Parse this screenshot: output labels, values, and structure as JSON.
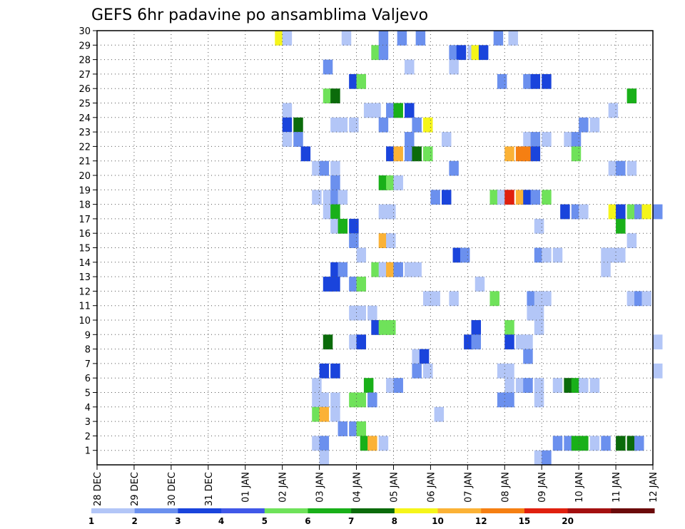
{
  "chart_data": {
    "type": "heatmap",
    "title": "GEFS 6hr padavine po ansamblima Valjevo",
    "x_tick_labels": [
      "28 DEC",
      "29 DEC",
      "30 DEC",
      "31 DEC",
      "01 JAN",
      "02 JAN",
      "03 JAN",
      "04 JAN",
      "05 JAN",
      "06 JAN",
      "07 JAN",
      "08 JAN",
      "09 JAN",
      "10 JAN",
      "11 JAN",
      "12 JAN"
    ],
    "y_tick_labels": [
      "1",
      "2",
      "3",
      "4",
      "5",
      "6",
      "7",
      "8",
      "9",
      "10",
      "11",
      "12",
      "13",
      "14",
      "15",
      "16",
      "17",
      "18",
      "19",
      "20",
      "21",
      "22",
      "23",
      "24",
      "25",
      "26",
      "27",
      "28",
      "29",
      "30"
    ],
    "ylim": [
      0,
      30
    ],
    "legend_placement": "bottom",
    "color_levels": [
      "1",
      "2",
      "3",
      "4",
      "5",
      "6",
      "7",
      "8",
      "10",
      "12",
      "15",
      "20"
    ],
    "color_bins": [
      "#b3c6f7",
      "#6b90ee",
      "#1a44dc",
      "#4058e8",
      "#6fe25a",
      "#19b019",
      "#0b6b0b",
      "#f5f51a",
      "#fbb236",
      "#f57f12",
      "#e0200e",
      "#a41010",
      "#6b0a0a"
    ],
    "cells": [
      {
        "day": 4.8,
        "member": 30,
        "v": 8
      },
      {
        "day": 5.0,
        "member": 30,
        "v": 1
      },
      {
        "day": 6.6,
        "member": 30,
        "v": 1
      },
      {
        "day": 7.6,
        "member": 30,
        "v": 2
      },
      {
        "day": 8.1,
        "member": 30,
        "v": 2
      },
      {
        "day": 8.6,
        "member": 30,
        "v": 2
      },
      {
        "day": 10.7,
        "member": 30,
        "v": 2
      },
      {
        "day": 11.1,
        "member": 30,
        "v": 1
      },
      {
        "day": 7.4,
        "member": 29,
        "v": 5
      },
      {
        "day": 7.6,
        "member": 29,
        "v": 2
      },
      {
        "day": 9.5,
        "member": 29,
        "v": 2
      },
      {
        "day": 9.7,
        "member": 29,
        "v": 3
      },
      {
        "day": 10.0,
        "member": 29,
        "v": 1
      },
      {
        "day": 10.1,
        "member": 29,
        "v": 8
      },
      {
        "day": 10.3,
        "member": 29,
        "v": 3
      },
      {
        "day": 6.1,
        "member": 28,
        "v": 2
      },
      {
        "day": 8.3,
        "member": 28,
        "v": 1
      },
      {
        "day": 9.5,
        "member": 28,
        "v": 1
      },
      {
        "day": 6.8,
        "member": 27,
        "v": 3
      },
      {
        "day": 7.0,
        "member": 27,
        "v": 5
      },
      {
        "day": 10.8,
        "member": 27,
        "v": 2
      },
      {
        "day": 11.5,
        "member": 27,
        "v": 2
      },
      {
        "day": 11.7,
        "member": 27,
        "v": 3
      },
      {
        "day": 12.0,
        "member": 27,
        "v": 3
      },
      {
        "day": 6.1,
        "member": 26,
        "v": 5
      },
      {
        "day": 6.3,
        "member": 26,
        "v": 7
      },
      {
        "day": 14.3,
        "member": 26,
        "v": 6
      },
      {
        "day": 5.0,
        "member": 25,
        "v": 1
      },
      {
        "day": 7.2,
        "member": 25,
        "v": 1
      },
      {
        "day": 7.4,
        "member": 25,
        "v": 1
      },
      {
        "day": 7.8,
        "member": 25,
        "v": 2
      },
      {
        "day": 8.0,
        "member": 25,
        "v": 6
      },
      {
        "day": 8.3,
        "member": 25,
        "v": 3
      },
      {
        "day": 13.8,
        "member": 25,
        "v": 1
      },
      {
        "day": 5.0,
        "member": 24,
        "v": 3
      },
      {
        "day": 5.3,
        "member": 24,
        "v": 7
      },
      {
        "day": 6.3,
        "member": 24,
        "v": 1
      },
      {
        "day": 6.5,
        "member": 24,
        "v": 1
      },
      {
        "day": 6.8,
        "member": 24,
        "v": 1
      },
      {
        "day": 7.6,
        "member": 24,
        "v": 2
      },
      {
        "day": 8.5,
        "member": 24,
        "v": 2
      },
      {
        "day": 8.8,
        "member": 24,
        "v": 8
      },
      {
        "day": 13.0,
        "member": 24,
        "v": 2
      },
      {
        "day": 13.3,
        "member": 24,
        "v": 1
      },
      {
        "day": 5.0,
        "member": 23,
        "v": 1
      },
      {
        "day": 5.3,
        "member": 23,
        "v": 2
      },
      {
        "day": 8.3,
        "member": 23,
        "v": 2
      },
      {
        "day": 9.3,
        "member": 23,
        "v": 1
      },
      {
        "day": 11.5,
        "member": 23,
        "v": 1
      },
      {
        "day": 11.7,
        "member": 23,
        "v": 2
      },
      {
        "day": 12.0,
        "member": 23,
        "v": 1
      },
      {
        "day": 12.6,
        "member": 23,
        "v": 1
      },
      {
        "day": 12.8,
        "member": 23,
        "v": 2
      },
      {
        "day": 5.5,
        "member": 22,
        "v": 3
      },
      {
        "day": 7.8,
        "member": 22,
        "v": 3
      },
      {
        "day": 8.0,
        "member": 22,
        "v": 10
      },
      {
        "day": 8.3,
        "member": 22,
        "v": 2
      },
      {
        "day": 8.5,
        "member": 22,
        "v": 7
      },
      {
        "day": 8.8,
        "member": 22,
        "v": 5
      },
      {
        "day": 11.0,
        "member": 22,
        "v": 10
      },
      {
        "day": 11.3,
        "member": 22,
        "v": 12
      },
      {
        "day": 11.5,
        "member": 22,
        "v": 12
      },
      {
        "day": 11.7,
        "member": 22,
        "v": 3
      },
      {
        "day": 12.8,
        "member": 22,
        "v": 5
      },
      {
        "day": 5.8,
        "member": 21,
        "v": 1
      },
      {
        "day": 6.0,
        "member": 21,
        "v": 2
      },
      {
        "day": 6.3,
        "member": 21,
        "v": 1
      },
      {
        "day": 9.5,
        "member": 21,
        "v": 2
      },
      {
        "day": 13.8,
        "member": 21,
        "v": 1
      },
      {
        "day": 14.0,
        "member": 21,
        "v": 2
      },
      {
        "day": 14.3,
        "member": 21,
        "v": 1
      },
      {
        "day": 6.3,
        "member": 20,
        "v": 2
      },
      {
        "day": 7.6,
        "member": 20,
        "v": 6
      },
      {
        "day": 7.8,
        "member": 20,
        "v": 5
      },
      {
        "day": 8.0,
        "member": 20,
        "v": 1
      },
      {
        "day": 5.8,
        "member": 19,
        "v": 1
      },
      {
        "day": 6.1,
        "member": 19,
        "v": 1
      },
      {
        "day": 6.3,
        "member": 19,
        "v": 2
      },
      {
        "day": 6.5,
        "member": 19,
        "v": 1
      },
      {
        "day": 9.0,
        "member": 19,
        "v": 2
      },
      {
        "day": 9.3,
        "member": 19,
        "v": 3
      },
      {
        "day": 10.6,
        "member": 19,
        "v": 5
      },
      {
        "day": 10.8,
        "member": 19,
        "v": 1
      },
      {
        "day": 11.0,
        "member": 19,
        "v": 15
      },
      {
        "day": 11.3,
        "member": 19,
        "v": 10
      },
      {
        "day": 11.5,
        "member": 19,
        "v": 3
      },
      {
        "day": 11.7,
        "member": 19,
        "v": 2
      },
      {
        "day": 12.0,
        "member": 19,
        "v": 5
      },
      {
        "day": 6.1,
        "member": 18,
        "v": 1
      },
      {
        "day": 6.3,
        "member": 18,
        "v": 6
      },
      {
        "day": 7.6,
        "member": 18,
        "v": 1
      },
      {
        "day": 7.8,
        "member": 18,
        "v": 1
      },
      {
        "day": 12.5,
        "member": 18,
        "v": 3
      },
      {
        "day": 12.8,
        "member": 18,
        "v": 2
      },
      {
        "day": 13.0,
        "member": 18,
        "v": 1
      },
      {
        "day": 13.8,
        "member": 18,
        "v": 8
      },
      {
        "day": 14.0,
        "member": 18,
        "v": 3
      },
      {
        "day": 14.3,
        "member": 18,
        "v": 5
      },
      {
        "day": 14.5,
        "member": 18,
        "v": 2
      },
      {
        "day": 14.7,
        "member": 18,
        "v": 8
      },
      {
        "day": 15.0,
        "member": 18,
        "v": 2
      },
      {
        "day": 6.3,
        "member": 17,
        "v": 1
      },
      {
        "day": 6.5,
        "member": 17,
        "v": 6
      },
      {
        "day": 6.8,
        "member": 17,
        "v": 3
      },
      {
        "day": 11.8,
        "member": 17,
        "v": 1
      },
      {
        "day": 14.0,
        "member": 17,
        "v": 6
      },
      {
        "day": 6.8,
        "member": 16,
        "v": 2
      },
      {
        "day": 7.6,
        "member": 16,
        "v": 10
      },
      {
        "day": 7.8,
        "member": 16,
        "v": 1
      },
      {
        "day": 14.3,
        "member": 16,
        "v": 1
      },
      {
        "day": 7.0,
        "member": 15,
        "v": 1
      },
      {
        "day": 9.6,
        "member": 15,
        "v": 3
      },
      {
        "day": 9.8,
        "member": 15,
        "v": 2
      },
      {
        "day": 11.8,
        "member": 15,
        "v": 2
      },
      {
        "day": 12.0,
        "member": 15,
        "v": 1
      },
      {
        "day": 12.3,
        "member": 15,
        "v": 1
      },
      {
        "day": 13.6,
        "member": 15,
        "v": 1
      },
      {
        "day": 13.8,
        "member": 15,
        "v": 1
      },
      {
        "day": 14.0,
        "member": 15,
        "v": 1
      },
      {
        "day": 6.3,
        "member": 14,
        "v": 3
      },
      {
        "day": 6.5,
        "member": 14,
        "v": 2
      },
      {
        "day": 7.4,
        "member": 14,
        "v": 5
      },
      {
        "day": 7.6,
        "member": 14,
        "v": 1
      },
      {
        "day": 7.8,
        "member": 14,
        "v": 10
      },
      {
        "day": 8.0,
        "member": 14,
        "v": 2
      },
      {
        "day": 8.3,
        "member": 14,
        "v": 1
      },
      {
        "day": 8.5,
        "member": 14,
        "v": 1
      },
      {
        "day": 13.6,
        "member": 14,
        "v": 1
      },
      {
        "day": 6.1,
        "member": 13,
        "v": 3
      },
      {
        "day": 6.3,
        "member": 13,
        "v": 3
      },
      {
        "day": 6.8,
        "member": 13,
        "v": 2
      },
      {
        "day": 7.0,
        "member": 13,
        "v": 5
      },
      {
        "day": 10.2,
        "member": 13,
        "v": 1
      },
      {
        "day": 8.8,
        "member": 12,
        "v": 1
      },
      {
        "day": 9.0,
        "member": 12,
        "v": 1
      },
      {
        "day": 9.5,
        "member": 12,
        "v": 1
      },
      {
        "day": 10.6,
        "member": 12,
        "v": 5
      },
      {
        "day": 11.6,
        "member": 12,
        "v": 2
      },
      {
        "day": 11.8,
        "member": 12,
        "v": 1
      },
      {
        "day": 12.0,
        "member": 12,
        "v": 1
      },
      {
        "day": 14.3,
        "member": 12,
        "v": 1
      },
      {
        "day": 14.5,
        "member": 12,
        "v": 2
      },
      {
        "day": 14.7,
        "member": 12,
        "v": 1
      },
      {
        "day": 6.8,
        "member": 11,
        "v": 1
      },
      {
        "day": 7.0,
        "member": 11,
        "v": 1
      },
      {
        "day": 7.3,
        "member": 11,
        "v": 1
      },
      {
        "day": 11.6,
        "member": 11,
        "v": 1
      },
      {
        "day": 11.8,
        "member": 11,
        "v": 1
      },
      {
        "day": 7.4,
        "member": 10,
        "v": 3
      },
      {
        "day": 7.6,
        "member": 10,
        "v": 5
      },
      {
        "day": 7.8,
        "member": 10,
        "v": 5
      },
      {
        "day": 10.1,
        "member": 10,
        "v": 3
      },
      {
        "day": 11.0,
        "member": 10,
        "v": 5
      },
      {
        "day": 11.8,
        "member": 10,
        "v": 1
      },
      {
        "day": 6.1,
        "member": 9,
        "v": 7
      },
      {
        "day": 6.8,
        "member": 9,
        "v": 1
      },
      {
        "day": 7.0,
        "member": 9,
        "v": 3
      },
      {
        "day": 9.9,
        "member": 9,
        "v": 3
      },
      {
        "day": 10.1,
        "member": 9,
        "v": 2
      },
      {
        "day": 11.0,
        "member": 9,
        "v": 3
      },
      {
        "day": 11.3,
        "member": 9,
        "v": 1
      },
      {
        "day": 11.5,
        "member": 9,
        "v": 1
      },
      {
        "day": 15.0,
        "member": 9,
        "v": 1
      },
      {
        "day": 8.5,
        "member": 8,
        "v": 1
      },
      {
        "day": 8.7,
        "member": 8,
        "v": 3
      },
      {
        "day": 11.5,
        "member": 8,
        "v": 2
      },
      {
        "day": 6.0,
        "member": 7,
        "v": 3
      },
      {
        "day": 6.3,
        "member": 7,
        "v": 3
      },
      {
        "day": 8.5,
        "member": 7,
        "v": 2
      },
      {
        "day": 8.8,
        "member": 7,
        "v": 1
      },
      {
        "day": 10.8,
        "member": 7,
        "v": 1
      },
      {
        "day": 11.0,
        "member": 7,
        "v": 1
      },
      {
        "day": 15.0,
        "member": 7,
        "v": 1
      },
      {
        "day": 5.8,
        "member": 6,
        "v": 1
      },
      {
        "day": 7.2,
        "member": 6,
        "v": 6
      },
      {
        "day": 7.8,
        "member": 6,
        "v": 1
      },
      {
        "day": 8.0,
        "member": 6,
        "v": 2
      },
      {
        "day": 11.0,
        "member": 6,
        "v": 1
      },
      {
        "day": 11.3,
        "member": 6,
        "v": 1
      },
      {
        "day": 11.5,
        "member": 6,
        "v": 2
      },
      {
        "day": 11.8,
        "member": 6,
        "v": 1
      },
      {
        "day": 12.3,
        "member": 6,
        "v": 1
      },
      {
        "day": 12.6,
        "member": 6,
        "v": 7
      },
      {
        "day": 12.8,
        "member": 6,
        "v": 6
      },
      {
        "day": 13.0,
        "member": 6,
        "v": 1
      },
      {
        "day": 13.3,
        "member": 6,
        "v": 1
      },
      {
        "day": 5.8,
        "member": 5,
        "v": 1
      },
      {
        "day": 6.0,
        "member": 5,
        "v": 1
      },
      {
        "day": 6.3,
        "member": 5,
        "v": 1
      },
      {
        "day": 6.8,
        "member": 5,
        "v": 5
      },
      {
        "day": 7.0,
        "member": 5,
        "v": 5
      },
      {
        "day": 7.3,
        "member": 5,
        "v": 2
      },
      {
        "day": 10.8,
        "member": 5,
        "v": 2
      },
      {
        "day": 11.0,
        "member": 5,
        "v": 2
      },
      {
        "day": 11.8,
        "member": 5,
        "v": 1
      },
      {
        "day": 5.8,
        "member": 4,
        "v": 5
      },
      {
        "day": 6.0,
        "member": 4,
        "v": 10
      },
      {
        "day": 6.3,
        "member": 4,
        "v": 1
      },
      {
        "day": 9.1,
        "member": 4,
        "v": 1
      },
      {
        "day": 6.5,
        "member": 3,
        "v": 2
      },
      {
        "day": 6.8,
        "member": 3,
        "v": 2
      },
      {
        "day": 7.0,
        "member": 3,
        "v": 5
      },
      {
        "day": 5.8,
        "member": 2,
        "v": 1
      },
      {
        "day": 6.0,
        "member": 2,
        "v": 2
      },
      {
        "day": 7.1,
        "member": 2,
        "v": 6
      },
      {
        "day": 7.3,
        "member": 2,
        "v": 10
      },
      {
        "day": 7.6,
        "member": 2,
        "v": 1
      },
      {
        "day": 12.3,
        "member": 2,
        "v": 2
      },
      {
        "day": 12.6,
        "member": 2,
        "v": 2
      },
      {
        "day": 12.8,
        "member": 2,
        "v": 6
      },
      {
        "day": 13.0,
        "member": 2,
        "v": 6
      },
      {
        "day": 13.3,
        "member": 2,
        "v": 1
      },
      {
        "day": 13.6,
        "member": 2,
        "v": 2
      },
      {
        "day": 14.0,
        "member": 2,
        "v": 7
      },
      {
        "day": 14.3,
        "member": 2,
        "v": 7
      },
      {
        "day": 14.5,
        "member": 2,
        "v": 2
      },
      {
        "day": 6.0,
        "member": 1,
        "v": 1
      },
      {
        "day": 11.8,
        "member": 1,
        "v": 1
      },
      {
        "day": 12.0,
        "member": 1,
        "v": 2
      }
    ]
  }
}
